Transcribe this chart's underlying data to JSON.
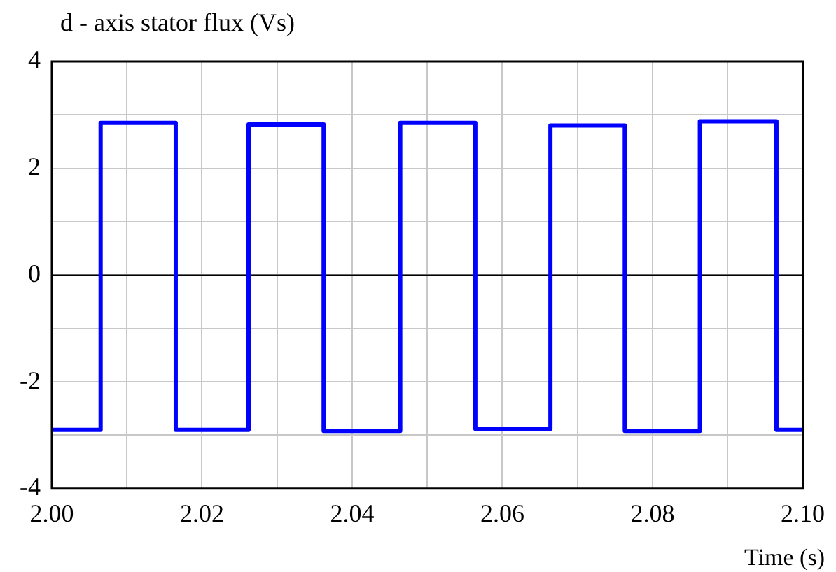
{
  "chart_data": {
    "type": "step",
    "title": "d - axis stator flux  (Vs)",
    "xlabel": "Time (s)",
    "x": [
      2.0,
      2.0065,
      2.0165,
      2.0262,
      2.0362,
      2.0464,
      2.0564,
      2.0664,
      2.0763,
      2.0863,
      2.0965,
      2.1
    ],
    "series": [
      {
        "color": "#0000ff",
        "values": [
          -2.9,
          2.85,
          -2.9,
          2.82,
          -2.92,
          2.85,
          -2.88,
          2.8,
          -2.92,
          2.88,
          -2.9,
          -2.9
        ]
      }
    ],
    "xlim": [
      2.0,
      2.1
    ],
    "xticks": [
      {
        "value": 2.0,
        "label": "2.00"
      },
      {
        "value": 2.01,
        "label": null
      },
      {
        "value": 2.02,
        "label": "2.02"
      },
      {
        "value": 2.03,
        "label": null
      },
      {
        "value": 2.04,
        "label": "2.04"
      },
      {
        "value": 2.05,
        "label": null
      },
      {
        "value": 2.06,
        "label": "2.06"
      },
      {
        "value": 2.07,
        "label": null
      },
      {
        "value": 2.08,
        "label": "2.08"
      },
      {
        "value": 2.09,
        "label": null
      },
      {
        "value": 2.1,
        "label": "2.10"
      }
    ],
    "ylim": [
      -4,
      4
    ],
    "yticks": [
      -4,
      {
        "value": -3,
        "label": null
      },
      -2,
      {
        "value": -1,
        "label": null
      },
      0,
      {
        "value": 1,
        "label": null
      },
      2,
      {
        "value": 3,
        "label": null
      },
      4
    ],
    "ref_lines": [
      {
        "axis": "y",
        "value": 0,
        "color": "#000000"
      }
    ],
    "grid": true,
    "legend": false,
    "marker": "none",
    "line_style": "solid"
  }
}
